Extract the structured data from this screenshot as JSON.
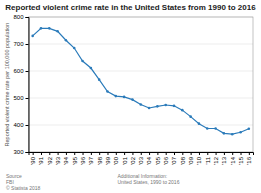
{
  "chart_data": {
    "type": "line",
    "title": "Reported violent crime rate in the United States from 1990 to 2016",
    "ylabel": "Reported violent crime rate per 100,000 population",
    "x": [
      1990,
      1991,
      1992,
      1993,
      1994,
      1995,
      1996,
      1997,
      1998,
      1999,
      2000,
      2001,
      2002,
      2003,
      2004,
      2005,
      2006,
      2007,
      2008,
      2009,
      2010,
      2011,
      2012,
      2013,
      2014,
      2015,
      2016
    ],
    "values": [
      730,
      758,
      758,
      747,
      714,
      685,
      637,
      611,
      568,
      524,
      507,
      504,
      494,
      476,
      463,
      469,
      474,
      471,
      455,
      431,
      405,
      387,
      387,
      369,
      366,
      373,
      386
    ],
    "color": "#2b7bba",
    "marker": "circle",
    "xlim": [
      1989.5,
      2016.5
    ],
    "xticks": [
      {
        "value": 1990,
        "label": "'90"
      },
      {
        "value": 1991,
        "label": "'91"
      },
      {
        "value": 1992,
        "label": "'92"
      },
      {
        "value": 1993,
        "label": "'93"
      },
      {
        "value": 1994,
        "label": "'94"
      },
      {
        "value": 1995,
        "label": "'95"
      },
      {
        "value": 1996,
        "label": "'96"
      },
      {
        "value": 1997,
        "label": "'97"
      },
      {
        "value": 1998,
        "label": "'98"
      },
      {
        "value": 1999,
        "label": "'99"
      },
      {
        "value": 2000,
        "label": "'00"
      },
      {
        "value": 2001,
        "label": "'01"
      },
      {
        "value": 2002,
        "label": "'02"
      },
      {
        "value": 2003,
        "label": "'03"
      },
      {
        "value": 2004,
        "label": "'04"
      },
      {
        "value": 2005,
        "label": "'05"
      },
      {
        "value": 2006,
        "label": "'06"
      },
      {
        "value": 2007,
        "label": "'07"
      },
      {
        "value": 2008,
        "label": "'08"
      },
      {
        "value": 2009,
        "label": "'09"
      },
      {
        "value": 2010,
        "label": "'10"
      },
      {
        "value": 2011,
        "label": "'11"
      },
      {
        "value": 2012,
        "label": "'12"
      },
      {
        "value": 2013,
        "label": "'13"
      },
      {
        "value": 2014,
        "label": "'14"
      },
      {
        "value": 2015,
        "label": "'15"
      },
      {
        "value": 2016,
        "label": "'16"
      }
    ],
    "ylim": [
      300,
      800
    ],
    "yticks": [
      300,
      400,
      500,
      600,
      700,
      800
    ],
    "grid": true,
    "annotations": [
      "Source\nFBI\n© Statista 2018",
      "Additional Information:\nUnited States, 1990 to 2016"
    ]
  }
}
